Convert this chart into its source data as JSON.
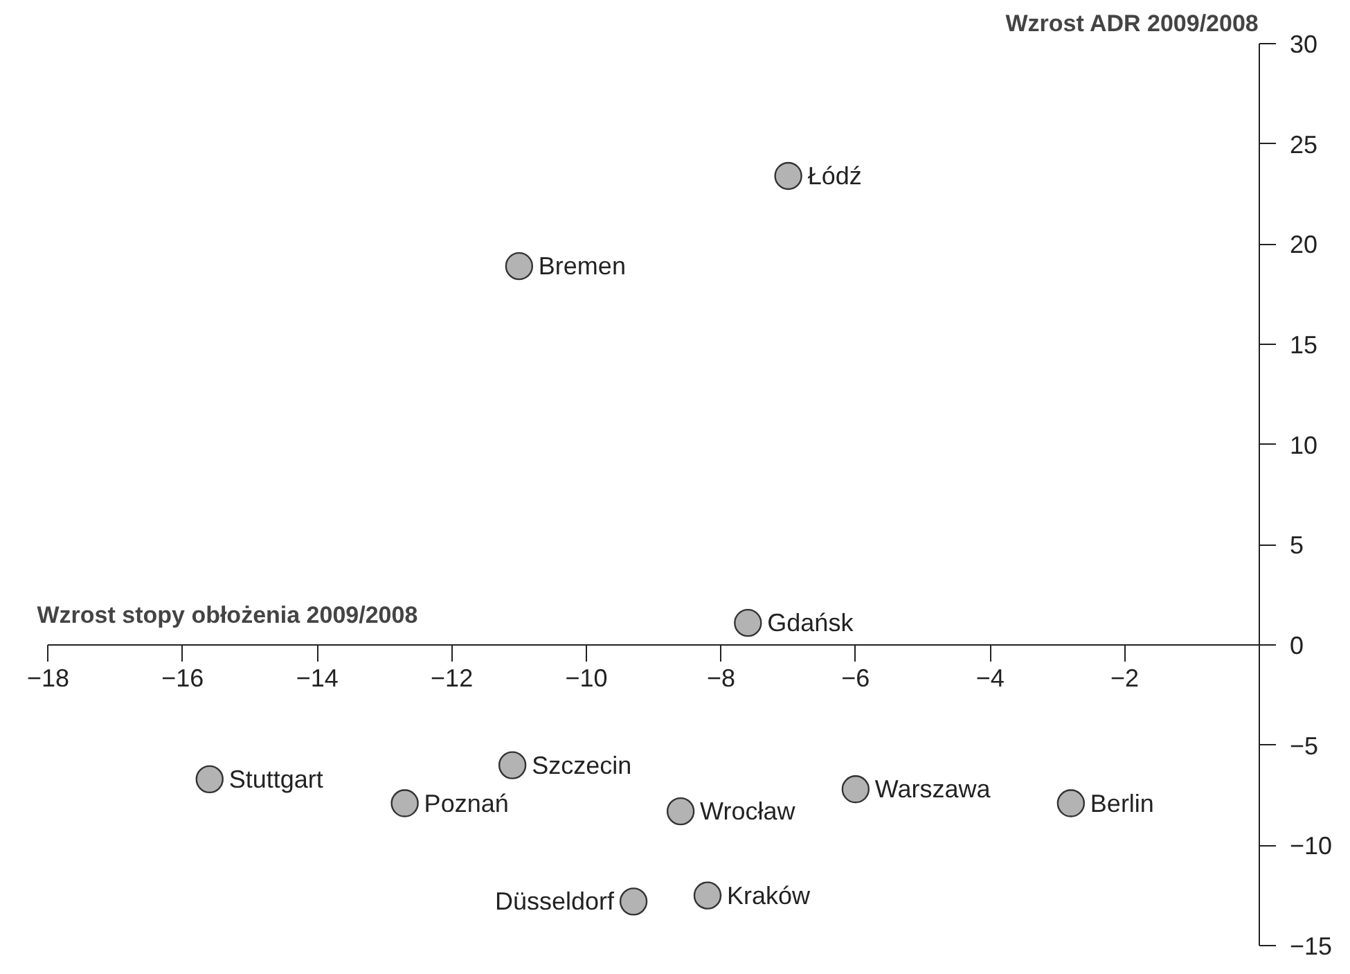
{
  "chart_data": {
    "type": "scatter",
    "xlabel": "Wzrost stopy obłożenia 2009/2008",
    "ylabel": "Wzrost ADR 2009/2008",
    "x": [
      -7.0,
      -11.0,
      -7.6,
      -15.6,
      -11.1,
      -12.7,
      -8.6,
      -6.0,
      -2.8,
      -9.3,
      -8.2
    ],
    "values": [
      23.4,
      18.9,
      1.1,
      -6.7,
      -6.0,
      -7.9,
      -8.3,
      -7.2,
      -7.9,
      -12.8,
      -12.5
    ],
    "color": "#b3b3b3",
    "marker": "circle",
    "grid": false,
    "xlim": [
      -18,
      0
    ],
    "ylim": [
      -15,
      30
    ],
    "xticks": [
      -18,
      -16,
      -14,
      -12,
      -10,
      -8,
      -6,
      -4,
      -2
    ],
    "yticks": [
      -15,
      -10,
      -5,
      0,
      5,
      10,
      15,
      20,
      25,
      30
    ],
    "annotations": [
      {
        "text": "Łódź",
        "x": -7.0,
        "y": 23.4
      },
      {
        "text": "Bremen",
        "x": -11.0,
        "y": 18.9
      },
      {
        "text": "Gdańsk",
        "x": -7.6,
        "y": 1.1
      },
      {
        "text": "Stuttgart",
        "x": -15.6,
        "y": -6.7
      },
      {
        "text": "Szczecin",
        "x": -11.1,
        "y": -6.0
      },
      {
        "text": "Poznań",
        "x": -12.7,
        "y": -7.9
      },
      {
        "text": "Wrocław",
        "x": -8.6,
        "y": -8.3
      },
      {
        "text": "Warszawa",
        "x": -6.0,
        "y": -7.2
      },
      {
        "text": "Berlin",
        "x": -2.8,
        "y": -7.9
      },
      {
        "text": "Düsseldorf",
        "x": -9.3,
        "y": -12.8
      },
      {
        "text": "Kraków",
        "x": -8.2,
        "y": -12.5
      }
    ]
  }
}
